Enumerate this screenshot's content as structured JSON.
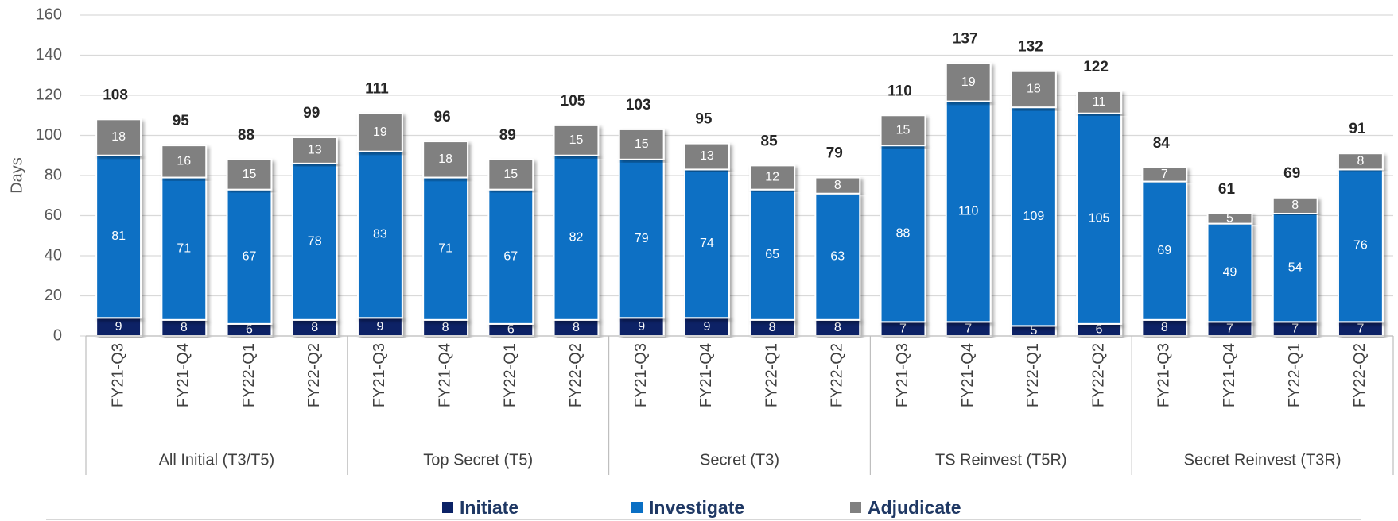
{
  "chart_data": {
    "type": "bar",
    "stacked": true,
    "ylabel": "Days",
    "groups": [
      "All Initial (T3/T5)",
      "Top Secret (T5)",
      "Secret (T3)",
      "TS Reinvest (T5R)",
      "Secret Reinvest (T3R)"
    ],
    "categories": [
      "FY21-Q3",
      "FY21-Q4",
      "FY22-Q1",
      "FY22-Q2",
      "FY21-Q3",
      "FY21-Q4",
      "FY22-Q1",
      "FY22-Q2",
      "FY21-Q3",
      "FY21-Q4",
      "FY22-Q1",
      "FY22-Q2",
      "FY21-Q3",
      "FY21-Q4",
      "FY22-Q1",
      "FY22-Q2",
      "FY21-Q3",
      "FY21-Q4",
      "FY22-Q1",
      "FY22-Q2"
    ],
    "series": [
      {
        "name": "Initiate",
        "color": "#0b2266",
        "values": [
          9,
          8,
          6,
          8,
          9,
          8,
          6,
          8,
          9,
          9,
          8,
          8,
          7,
          7,
          5,
          6,
          8,
          7,
          7,
          7
        ]
      },
      {
        "name": "Investigate",
        "color": "#0a6fc4",
        "values": [
          81,
          71,
          67,
          78,
          83,
          71,
          67,
          82,
          79,
          74,
          65,
          63,
          88,
          110,
          109,
          105,
          69,
          49,
          54,
          76
        ]
      },
      {
        "name": "Adjudicate",
        "color": "#808080",
        "values": [
          18,
          16,
          15,
          13,
          19,
          18,
          15,
          15,
          15,
          13,
          12,
          8,
          15,
          19,
          18,
          11,
          7,
          5,
          8,
          8
        ]
      }
    ],
    "totals": [
      108,
      95,
      88,
      99,
      111,
      96,
      89,
      105,
      103,
      95,
      85,
      79,
      110,
      137,
      132,
      122,
      84,
      61,
      69,
      91
    ],
    "ylim": [
      0,
      160
    ],
    "yticks": [
      0,
      20,
      40,
      60,
      80,
      100,
      120,
      140,
      160
    ],
    "grid": true
  }
}
